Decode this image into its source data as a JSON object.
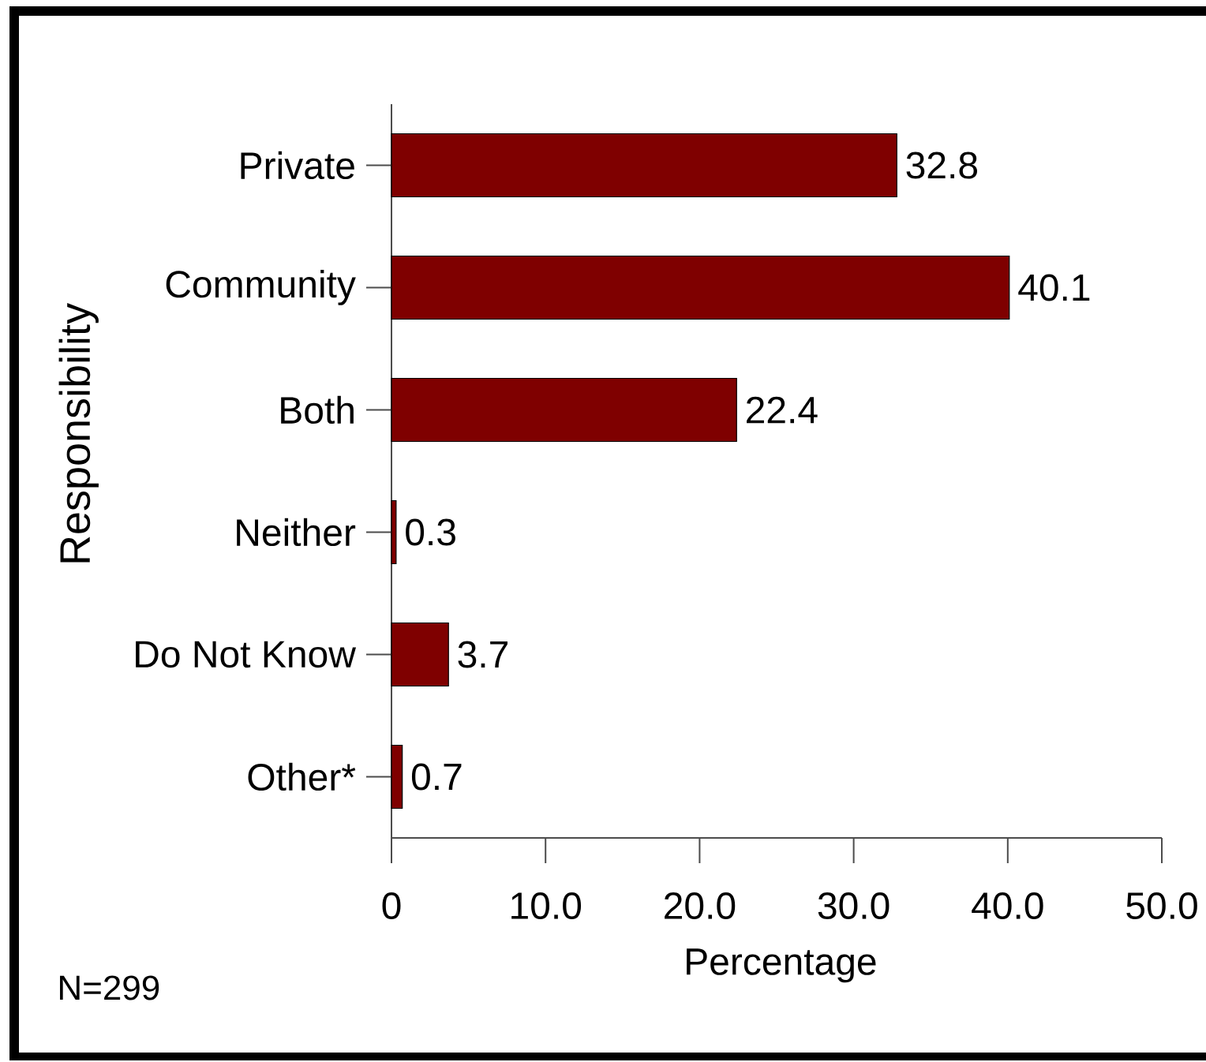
{
  "chart_data": {
    "type": "bar",
    "orientation": "horizontal",
    "xlabel": "Percentage",
    "ylabel": "Responsibility",
    "categories": [
      "Private",
      "Community",
      "Both",
      "Neither",
      "Do Not Know",
      "Other*"
    ],
    "values": [
      32.8,
      40.1,
      22.4,
      0.3,
      3.7,
      0.7
    ],
    "color": "#7f0000",
    "xlim": [
      0,
      50
    ],
    "xticks": [
      0,
      {
        "value": 10,
        "label": "10.0"
      },
      {
        "value": 20,
        "label": "20.0"
      },
      {
        "value": 30,
        "label": "30.0"
      },
      {
        "value": 40,
        "label": "40.0"
      },
      {
        "value": 50,
        "label": "50.0"
      }
    ],
    "data_labels": true,
    "annotations": [
      "N=299"
    ]
  }
}
